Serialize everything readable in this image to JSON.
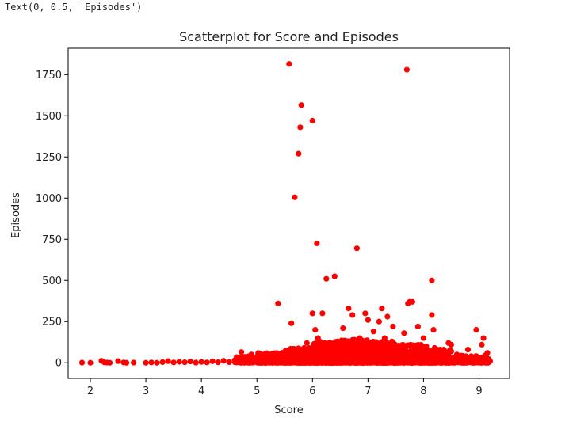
{
  "cell_output": "Text(0, 0.5, 'Episodes')",
  "colors": {
    "points": "#ff0000",
    "axes": "#000000"
  },
  "chart_data": {
    "type": "scatter",
    "title": "Scatterplot for Score and Episodes",
    "xlabel": "Score",
    "ylabel": "Episodes",
    "xlim": [
      1.6,
      9.55
    ],
    "ylim": [
      -95,
      1910
    ],
    "xticks": [
      2,
      3,
      4,
      5,
      6,
      7,
      8,
      9
    ],
    "yticks": [
      0,
      250,
      500,
      750,
      1000,
      1250,
      1500,
      1750
    ],
    "grid": false,
    "points": [
      {
        "x": 1.85,
        "y": 1
      },
      {
        "x": 2.0,
        "y": 0
      },
      {
        "x": 2.2,
        "y": 12
      },
      {
        "x": 2.25,
        "y": 3
      },
      {
        "x": 2.3,
        "y": 1
      },
      {
        "x": 2.35,
        "y": 0
      },
      {
        "x": 2.5,
        "y": 10
      },
      {
        "x": 2.6,
        "y": 2
      },
      {
        "x": 2.65,
        "y": 0
      },
      {
        "x": 2.78,
        "y": 1
      },
      {
        "x": 3.0,
        "y": 0
      },
      {
        "x": 3.1,
        "y": 2
      },
      {
        "x": 3.2,
        "y": 0
      },
      {
        "x": 3.3,
        "y": 4
      },
      {
        "x": 3.4,
        "y": 10
      },
      {
        "x": 3.5,
        "y": 2
      },
      {
        "x": 3.6,
        "y": 6
      },
      {
        "x": 3.7,
        "y": 3
      },
      {
        "x": 3.8,
        "y": 8
      },
      {
        "x": 3.9,
        "y": 1
      },
      {
        "x": 4.0,
        "y": 5
      },
      {
        "x": 4.1,
        "y": 2
      },
      {
        "x": 4.2,
        "y": 9
      },
      {
        "x": 4.3,
        "y": 3
      },
      {
        "x": 4.4,
        "y": 12
      },
      {
        "x": 4.5,
        "y": 4
      },
      {
        "x": 4.6,
        "y": 15
      },
      {
        "x": 4.7,
        "y": 6
      },
      {
        "x": 4.72,
        "y": 65
      },
      {
        "x": 4.8,
        "y": 20
      },
      {
        "x": 4.9,
        "y": 50
      },
      {
        "x": 5.0,
        "y": 10
      },
      {
        "x": 5.1,
        "y": 25
      },
      {
        "x": 5.2,
        "y": 8
      },
      {
        "x": 5.3,
        "y": 50
      },
      {
        "x": 5.38,
        "y": 360
      },
      {
        "x": 5.45,
        "y": 60
      },
      {
        "x": 5.5,
        "y": 30
      },
      {
        "x": 5.58,
        "y": 1815
      },
      {
        "x": 5.62,
        "y": 240
      },
      {
        "x": 5.68,
        "y": 1005
      },
      {
        "x": 5.75,
        "y": 1270
      },
      {
        "x": 5.78,
        "y": 1430
      },
      {
        "x": 5.8,
        "y": 1565
      },
      {
        "x": 5.85,
        "y": 90
      },
      {
        "x": 5.9,
        "y": 120
      },
      {
        "x": 6.0,
        "y": 1470
      },
      {
        "x": 6.0,
        "y": 300
      },
      {
        "x": 6.05,
        "y": 200
      },
      {
        "x": 6.08,
        "y": 725
      },
      {
        "x": 6.1,
        "y": 150
      },
      {
        "x": 6.18,
        "y": 300
      },
      {
        "x": 6.25,
        "y": 510
      },
      {
        "x": 6.3,
        "y": 100
      },
      {
        "x": 6.4,
        "y": 525
      },
      {
        "x": 6.45,
        "y": 130
      },
      {
        "x": 6.55,
        "y": 210
      },
      {
        "x": 6.6,
        "y": 80
      },
      {
        "x": 6.65,
        "y": 330
      },
      {
        "x": 6.72,
        "y": 290
      },
      {
        "x": 6.8,
        "y": 695
      },
      {
        "x": 6.85,
        "y": 150
      },
      {
        "x": 6.95,
        "y": 300
      },
      {
        "x": 7.0,
        "y": 260
      },
      {
        "x": 7.05,
        "y": 120
      },
      {
        "x": 7.1,
        "y": 190
      },
      {
        "x": 7.2,
        "y": 250
      },
      {
        "x": 7.25,
        "y": 330
      },
      {
        "x": 7.3,
        "y": 150
      },
      {
        "x": 7.35,
        "y": 280
      },
      {
        "x": 7.45,
        "y": 220
      },
      {
        "x": 7.55,
        "y": 100
      },
      {
        "x": 7.65,
        "y": 180
      },
      {
        "x": 7.7,
        "y": 1780
      },
      {
        "x": 7.72,
        "y": 360
      },
      {
        "x": 7.75,
        "y": 370
      },
      {
        "x": 7.8,
        "y": 370
      },
      {
        "x": 7.9,
        "y": 220
      },
      {
        "x": 8.0,
        "y": 150
      },
      {
        "x": 8.05,
        "y": 100
      },
      {
        "x": 8.15,
        "y": 500
      },
      {
        "x": 8.15,
        "y": 290
      },
      {
        "x": 8.18,
        "y": 200
      },
      {
        "x": 8.2,
        "y": 90
      },
      {
        "x": 8.3,
        "y": 80
      },
      {
        "x": 8.45,
        "y": 120
      },
      {
        "x": 8.5,
        "y": 110
      },
      {
        "x": 8.6,
        "y": 50
      },
      {
        "x": 8.7,
        "y": 30
      },
      {
        "x": 8.8,
        "y": 80
      },
      {
        "x": 8.95,
        "y": 200
      },
      {
        "x": 9.0,
        "y": 30
      },
      {
        "x": 9.05,
        "y": 110
      },
      {
        "x": 9.08,
        "y": 150
      },
      {
        "x": 9.12,
        "y": 30
      },
      {
        "x": 9.15,
        "y": 60
      },
      {
        "x": 9.18,
        "y": 20
      }
    ],
    "dense_bands": [
      {
        "x0": 4.6,
        "x1": 5.0,
        "ymax": 40,
        "count": 70
      },
      {
        "x0": 5.0,
        "x1": 5.5,
        "ymax": 60,
        "count": 160
      },
      {
        "x0": 5.5,
        "x1": 6.0,
        "ymax": 90,
        "count": 260
      },
      {
        "x0": 6.0,
        "x1": 6.5,
        "ymax": 130,
        "count": 380
      },
      {
        "x0": 6.5,
        "x1": 7.0,
        "ymax": 140,
        "count": 420
      },
      {
        "x0": 7.0,
        "x1": 7.5,
        "ymax": 130,
        "count": 400
      },
      {
        "x0": 7.5,
        "x1": 8.0,
        "ymax": 110,
        "count": 320
      },
      {
        "x0": 8.0,
        "x1": 8.5,
        "ymax": 80,
        "count": 200
      },
      {
        "x0": 8.5,
        "x1": 9.2,
        "ymax": 45,
        "count": 110
      }
    ]
  }
}
